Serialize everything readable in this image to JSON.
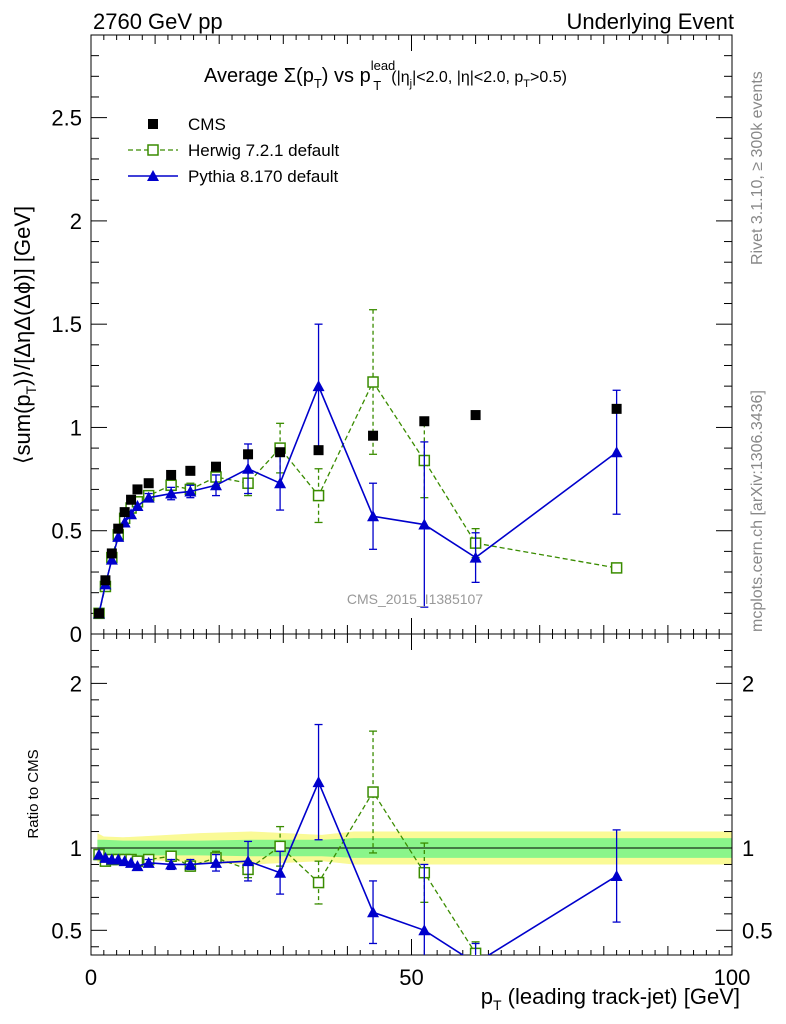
{
  "header": {
    "left": "2760 GeV pp",
    "right": "Underlying Event"
  },
  "side": {
    "rivet": "Rivet 3.1.10, ≥ 300k events",
    "mcplots": "mcplots.cern.ch [arXiv:1306.3436]"
  },
  "plot": {
    "title_main": "Average Σ(p",
    "title_sub_T": "T",
    "title_mid": ") vs p",
    "title_sup": "lead",
    "title_cuts": "(|η",
    "title_cuts_j": "j",
    "title_cuts_rest": "|<2.0, |η|<2.0, p",
    "title_cuts_T": "T",
    "title_cuts_end": ">0.5)",
    "watermark": "CMS_2015_I1385107",
    "ylabel_main": "⟨sum(p",
    "ylabel_T": "T",
    "ylabel_end": ")⟩/[ΔηΔ(Δϕ)] [GeV]",
    "ylabel_ratio": "Ratio to CMS",
    "xlabel_main": "p",
    "xlabel_T": "T",
    "xlabel_end": " (leading track-jet) [GeV]"
  },
  "colors": {
    "cms": "#000000",
    "herwig": "#3a8c00",
    "pythia": "#0000cc",
    "band_inner": "#8af58a",
    "band_outer": "#fafa96"
  },
  "chart_data": [
    {
      "type": "scatter",
      "panel": "main",
      "xlim": [
        0,
        100
      ],
      "ylim": [
        0,
        2.9
      ],
      "yticks": [
        0.5,
        1,
        1.5,
        2,
        2.5
      ],
      "yticklabels": [
        "0.5",
        "1",
        "1.5",
        "2",
        "2.5"
      ],
      "ybottom_label": "0",
      "legend_position": "top-left",
      "series": [
        {
          "name": "CMS",
          "style": "markers",
          "x": [
            1.25,
            2.25,
            3.25,
            4.25,
            5.25,
            6.25,
            7.25,
            9.0,
            12.5,
            15.5,
            19.5,
            24.5,
            29.5,
            35.5,
            44.0,
            52.0,
            60.0,
            82.0
          ],
          "y": [
            0.1,
            0.26,
            0.39,
            0.51,
            0.59,
            0.65,
            0.7,
            0.73,
            0.77,
            0.79,
            0.81,
            0.87,
            0.88,
            0.89,
            0.96,
            1.03,
            1.06,
            1.09
          ]
        },
        {
          "name": "Herwig 7.2.1 default",
          "style": "dashed-open-square",
          "x": [
            1.25,
            2.25,
            3.25,
            4.25,
            5.25,
            6.25,
            7.25,
            9.0,
            12.5,
            15.5,
            19.5,
            24.5,
            29.5,
            35.5,
            44.0,
            52.0,
            60.0,
            82.0
          ],
          "y": [
            0.1,
            0.23,
            0.37,
            0.48,
            0.56,
            0.61,
            0.64,
            0.67,
            0.72,
            0.7,
            0.76,
            0.73,
            0.9,
            0.67,
            1.22,
            0.84,
            0.44,
            0.32
          ],
          "err": [
            0,
            0,
            0,
            0,
            0,
            0,
            0,
            0,
            0,
            0.03,
            0.04,
            0.06,
            0.12,
            0.13,
            0.35,
            0.18,
            0.07,
            0
          ]
        },
        {
          "name": "Pythia 8.170 default",
          "style": "solid-triangle",
          "x": [
            1.25,
            2.25,
            3.25,
            4.25,
            5.25,
            6.25,
            7.25,
            9.0,
            12.5,
            15.5,
            19.5,
            24.5,
            29.5,
            35.5,
            44.0,
            52.0,
            60.0,
            82.0
          ],
          "y": [
            0.1,
            0.24,
            0.36,
            0.47,
            0.54,
            0.58,
            0.62,
            0.66,
            0.68,
            0.69,
            0.72,
            0.8,
            0.73,
            1.2,
            0.57,
            0.53,
            0.37,
            0.88
          ],
          "err": [
            0,
            0,
            0,
            0,
            0,
            0,
            0,
            0.02,
            0.03,
            0.03,
            0.05,
            0.12,
            0.13,
            0.3,
            0.16,
            0.4,
            0.12,
            0.3
          ]
        }
      ]
    },
    {
      "type": "scatter",
      "panel": "ratio",
      "ylabel": "Ratio to CMS",
      "xlim": [
        0,
        100
      ],
      "ylim": [
        0.35,
        2.3
      ],
      "yticks": [
        0.5,
        1,
        2
      ],
      "yticklabels": [
        "0.5",
        "1",
        "2"
      ],
      "xticks": [
        0,
        50,
        100
      ],
      "xticklabels": [
        "0",
        "50",
        "100"
      ],
      "band": {
        "x": [
          1.0,
          2.0,
          5.0,
          10.0,
          17.0,
          25.0,
          36.0,
          41.0,
          100.0
        ],
        "inner": [
          0.05,
          0.05,
          0.045,
          0.045,
          0.045,
          0.05,
          0.05,
          0.06,
          0.06
        ],
        "outer": [
          0.09,
          0.07,
          0.065,
          0.075,
          0.09,
          0.1,
          0.08,
          0.1,
          0.1
        ]
      },
      "series": [
        {
          "name": "Herwig 7.2.1 default",
          "style": "dashed-open-square",
          "x": [
            1.25,
            2.25,
            3.25,
            4.25,
            5.25,
            6.25,
            7.25,
            9.0,
            12.5,
            15.5,
            19.5,
            24.5,
            29.5,
            35.5,
            44.0,
            52.0,
            60.0
          ],
          "y": [
            0.96,
            0.92,
            0.93,
            0.93,
            0.93,
            0.93,
            0.92,
            0.93,
            0.95,
            0.89,
            0.94,
            0.87,
            1.01,
            0.79,
            1.34,
            0.85,
            0.36
          ],
          "err": [
            0,
            0,
            0,
            0,
            0,
            0,
            0,
            0,
            0,
            0.03,
            0.04,
            0.05,
            0.12,
            0.13,
            0.37,
            0.18,
            0.07
          ]
        },
        {
          "name": "Pythia 8.170 default",
          "style": "solid-triangle",
          "x": [
            1.25,
            2.25,
            3.25,
            4.25,
            5.25,
            6.25,
            7.25,
            9.0,
            12.5,
            15.5,
            19.5,
            24.5,
            29.5,
            35.5,
            44.0,
            52.0,
            60.0,
            82.0
          ],
          "y": [
            0.96,
            0.94,
            0.93,
            0.93,
            0.92,
            0.91,
            0.89,
            0.91,
            0.9,
            0.9,
            0.91,
            0.92,
            0.85,
            1.4,
            0.61,
            0.5,
            0.3,
            0.83
          ],
          "err": [
            0,
            0,
            0,
            0,
            0,
            0,
            0,
            0.02,
            0.03,
            0.03,
            0.05,
            0.12,
            0.13,
            0.35,
            0.19,
            0.4,
            0.12,
            0.28
          ]
        }
      ]
    }
  ]
}
